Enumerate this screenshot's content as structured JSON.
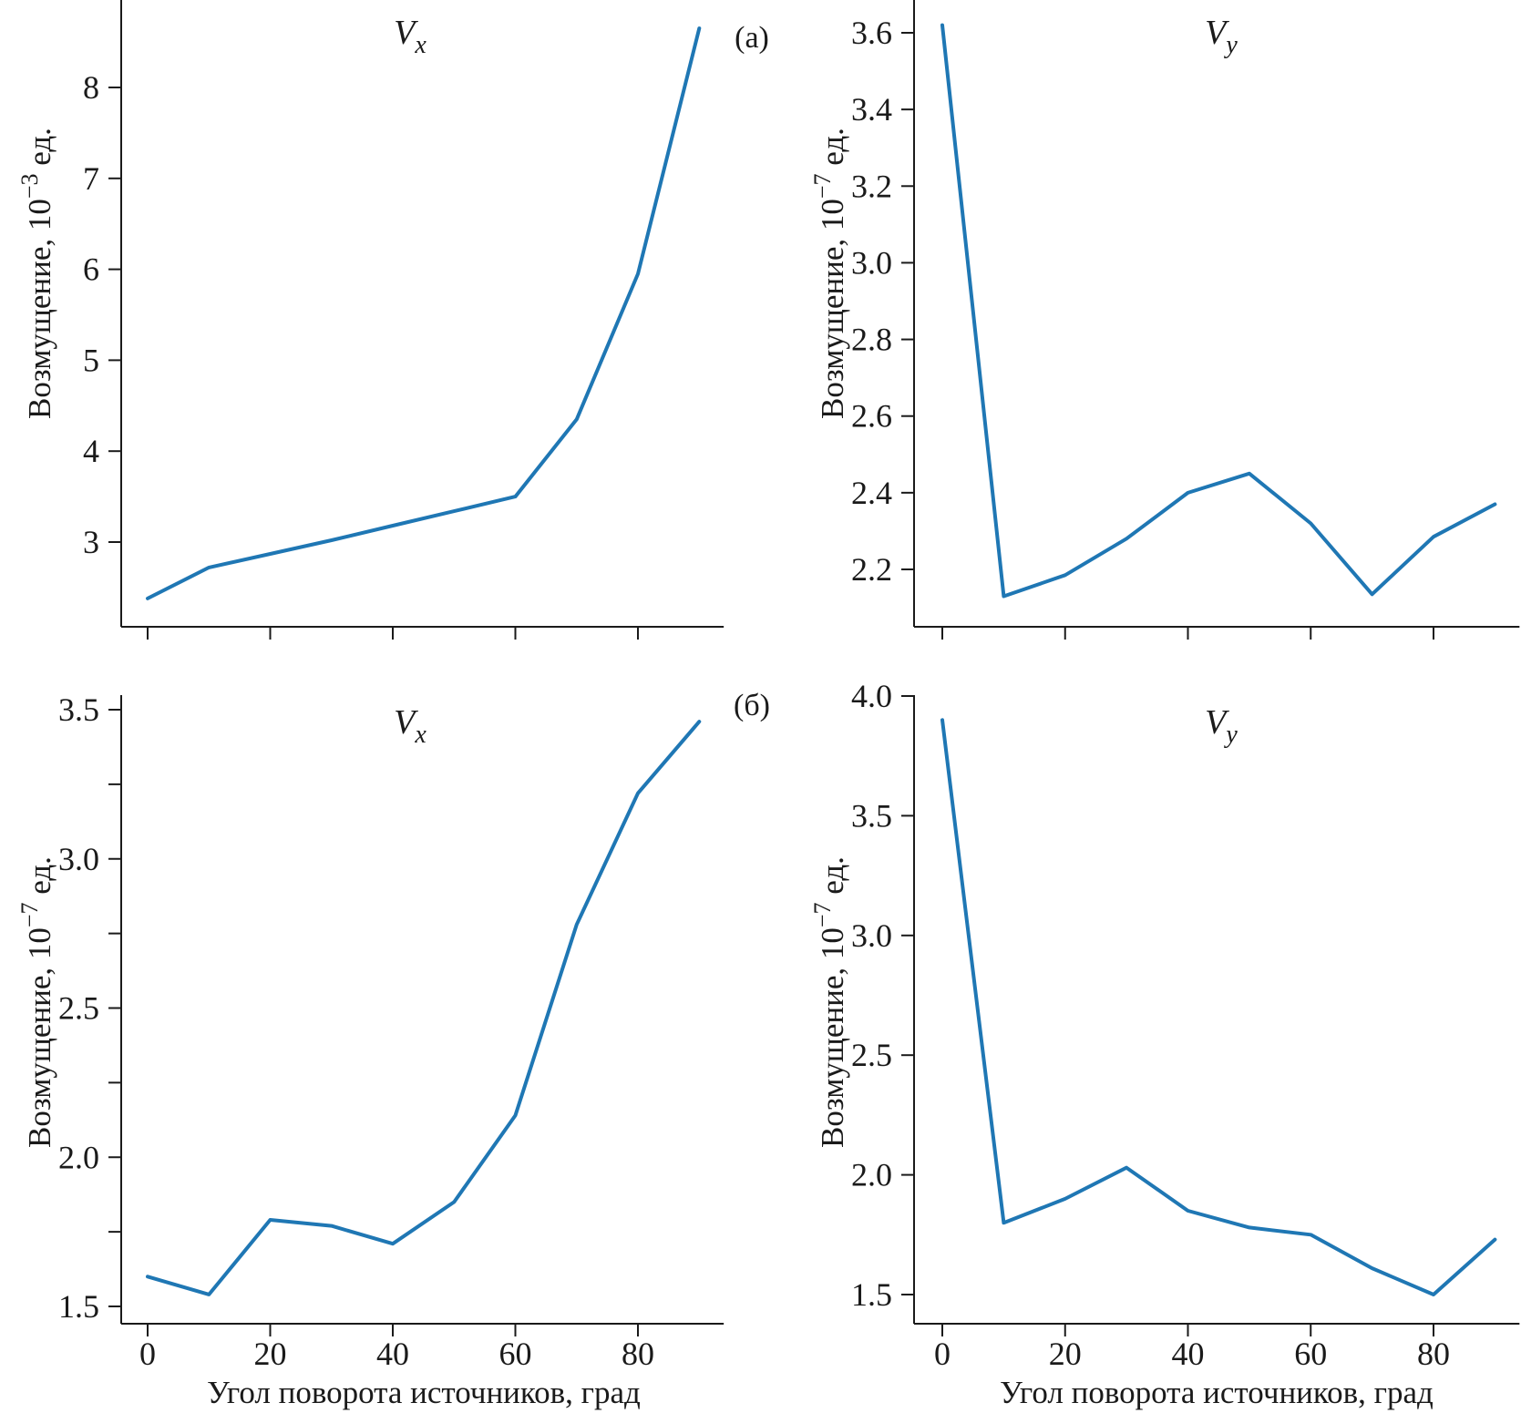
{
  "chart_data": [
    {
      "id": "a-vx",
      "type": "line",
      "panel_tag": "(a)",
      "title": "V",
      "title_sub": "x",
      "xlabel": "",
      "ylabel_prefix": "Возмущение, 10",
      "ylabel_exp": "−3",
      "ylabel_suffix": " ед.",
      "xlim": [
        -4,
        94
      ],
      "ylim": [
        2.1,
        8.85
      ],
      "xticks": [
        0,
        20,
        40,
        60,
        80
      ],
      "yticks": [
        3,
        4,
        5,
        6,
        7,
        8
      ],
      "ytick_labels": [
        "3",
        "4",
        "5",
        "6",
        "7",
        "8"
      ],
      "xtick_labels_shown": false,
      "grid": false,
      "series": [
        {
          "name": "Vx",
          "x": [
            0,
            10,
            20,
            30,
            40,
            50,
            60,
            70,
            80,
            90
          ],
          "y": [
            2.38,
            2.72,
            2.87,
            3.02,
            3.18,
            3.34,
            3.5,
            4.35,
            5.95,
            8.65
          ]
        }
      ]
    },
    {
      "id": "a-vy",
      "type": "line",
      "panel_tag": "",
      "title": "V",
      "title_sub": "y",
      "xlabel": "",
      "ylabel_prefix": "Возмущение, 10",
      "ylabel_exp": "−7",
      "ylabel_suffix": " ед.",
      "xlim": [
        -4,
        94
      ],
      "ylim": [
        2.05,
        3.68
      ],
      "xticks": [
        0,
        20,
        40,
        60,
        80
      ],
      "yticks": [
        2.2,
        2.4,
        2.6,
        2.8,
        3.0,
        3.2,
        3.4,
        3.6
      ],
      "ytick_labels": [
        "2.2",
        "2.4",
        "2.6",
        "2.8",
        "3.0",
        "3.2",
        "3.4",
        "3.6"
      ],
      "xtick_labels_shown": false,
      "grid": false,
      "series": [
        {
          "name": "Vy",
          "x": [
            0,
            10,
            20,
            30,
            40,
            50,
            60,
            70,
            80,
            90
          ],
          "y": [
            3.62,
            2.13,
            2.185,
            2.28,
            2.4,
            2.45,
            2.32,
            2.135,
            2.285,
            2.37
          ]
        }
      ]
    },
    {
      "id": "b-vx",
      "type": "line",
      "panel_tag": "(б)",
      "title": "V",
      "title_sub": "x",
      "xlabel": "Угол поворота источников, град",
      "ylabel_prefix": "Возмущение, 10",
      "ylabel_exp": "−7",
      "ylabel_suffix": " ед.",
      "xlim": [
        -4,
        94
      ],
      "ylim": [
        1.45,
        3.55
      ],
      "xticks": [
        0,
        20,
        40,
        60,
        80
      ],
      "xtick_labels": [
        "0",
        "20",
        "40",
        "60",
        "80"
      ],
      "yticks": [
        1.5,
        1.75,
        2.0,
        2.25,
        2.5,
        2.75,
        3.0,
        3.25,
        3.5
      ],
      "ytick_labels": [
        "1.5",
        "",
        "2.0",
        "",
        "2.5",
        "",
        "3.0",
        "",
        "3.5"
      ],
      "xtick_labels_shown": true,
      "grid": false,
      "series": [
        {
          "name": "Vx",
          "x": [
            0,
            10,
            20,
            30,
            40,
            50,
            60,
            70,
            80,
            90
          ],
          "y": [
            1.6,
            1.54,
            1.79,
            1.77,
            1.71,
            1.85,
            2.14,
            2.78,
            3.22,
            3.46
          ]
        }
      ]
    },
    {
      "id": "b-vy",
      "type": "line",
      "panel_tag": "",
      "title": "V",
      "title_sub": "y",
      "xlabel": "Угол поворота источников, град",
      "ylabel_prefix": "Возмущение, 10",
      "ylabel_exp": "−7",
      "ylabel_suffix": " ед.",
      "xlim": [
        -4,
        94
      ],
      "ylim": [
        1.38,
        4.0
      ],
      "xticks": [
        0,
        20,
        40,
        60,
        80
      ],
      "xtick_labels": [
        "0",
        "20",
        "40",
        "60",
        "80"
      ],
      "yticks": [
        1.5,
        2.0,
        2.5,
        3.0,
        3.5,
        4.0
      ],
      "ytick_labels": [
        "1.5",
        "2.0",
        "2.5",
        "3.0",
        "3.5",
        "4.0"
      ],
      "xtick_labels_shown": true,
      "grid": false,
      "series": [
        {
          "name": "Vy",
          "x": [
            0,
            10,
            20,
            30,
            40,
            50,
            60,
            70,
            80,
            90
          ],
          "y": [
            3.9,
            1.8,
            1.9,
            2.03,
            1.85,
            1.78,
            1.75,
            1.61,
            1.5,
            1.73
          ]
        }
      ]
    }
  ],
  "colors": {
    "series": "#1f77b4",
    "axis": "#1a1a1a"
  }
}
